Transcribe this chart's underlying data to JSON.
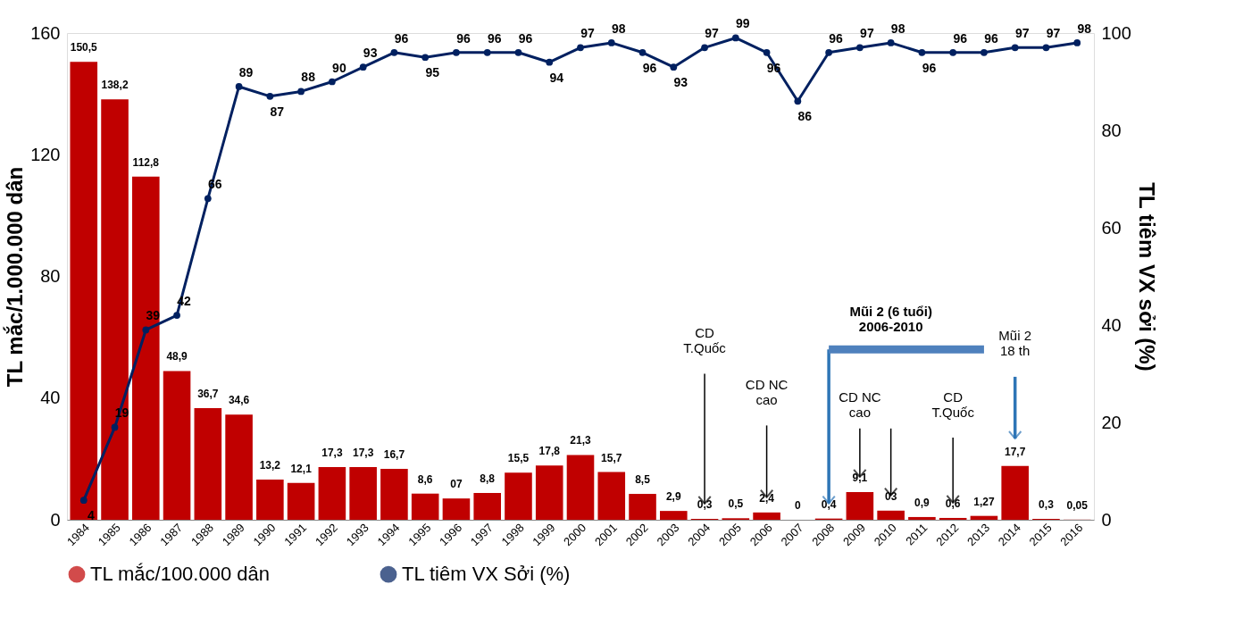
{
  "chart_data": {
    "type": "bar",
    "categories": [
      "1984",
      "1985",
      "1986",
      "1987",
      "1988",
      "1989",
      "1990",
      "1991",
      "1992",
      "1993",
      "1994",
      "1995",
      "1996",
      "1997",
      "1998",
      "1999",
      "2000",
      "2001",
      "2002",
      "2003",
      "2004",
      "2005",
      "2006",
      "2007",
      "2008",
      "2009",
      "2010",
      "2011",
      "2012",
      "2013",
      "2014",
      "2015",
      "2016"
    ],
    "series": [
      {
        "name": "TL mắc/100.000 dân",
        "color": "#c00000",
        "values": [
          150.5,
          138.2,
          112.8,
          48.9,
          36.7,
          34.6,
          13.2,
          12.1,
          17.3,
          17.3,
          16.7,
          8.6,
          7,
          8.8,
          15.5,
          17.8,
          21.3,
          15.7,
          8.5,
          2.9,
          0.3,
          0.5,
          2.4,
          0,
          0.4,
          9.1,
          3,
          0.9,
          0.6,
          1.27,
          17.7,
          0.3,
          0.05
        ],
        "value_labels": [
          "150,5",
          "138,2",
          "112,8",
          "48,9",
          "36,7",
          "34,6",
          "13,2",
          "12,1",
          "17,3",
          "17,3",
          "16,7",
          "8,6",
          "07",
          "8,8",
          "15,5",
          "17,8",
          "21,3",
          "15,7",
          "8,5",
          "2,9",
          "0,3",
          "0,5",
          "2,4",
          "0",
          "0,4",
          "9,1",
          "03",
          "0,9",
          "0,6",
          "1,27",
          "17,7",
          "0,3",
          "0,05"
        ]
      },
      {
        "name": "TL tiêm VX Sởi (%)",
        "type": "line",
        "axis": "y2",
        "color": "#002060",
        "marker": "circle",
        "values": [
          4,
          19,
          39,
          42,
          66,
          89,
          87,
          88,
          90,
          93,
          96,
          95,
          96,
          96,
          96,
          94,
          97,
          98,
          96,
          93,
          97,
          99,
          96,
          86,
          96,
          97,
          98,
          96,
          96,
          96,
          97,
          97,
          98
        ],
        "value_labels": [
          "4",
          "19",
          "39",
          "42",
          "66",
          "89",
          "87",
          "88",
          "90",
          "93",
          "96",
          "95",
          "96",
          "96",
          "96",
          "94",
          "97",
          "98",
          "96",
          "93",
          "97",
          "99",
          "96",
          "86",
          "96",
          "97",
          "98",
          "96",
          "96",
          "96",
          "97",
          "97",
          "98"
        ]
      }
    ],
    "ylabel": "TL mắc/1.000.000 dân",
    "y2label": "TL tiêm VX sởi (%)",
    "ylim": [
      0,
      160
    ],
    "yticks": [
      0,
      40,
      80,
      120,
      160
    ],
    "y2lim": [
      0,
      100
    ],
    "y2ticks": [
      0,
      20,
      40,
      60,
      80,
      100
    ],
    "grid": false,
    "legend": "bottom",
    "annotations": [
      "CD\nT.Quốc",
      "CD NC\ncao",
      "Mũi 2 (6 tuổi)\n2006-2010",
      "CD NC\ncao",
      "CD\nT.Quốc",
      "Mũi 2\n18 th"
    ]
  }
}
